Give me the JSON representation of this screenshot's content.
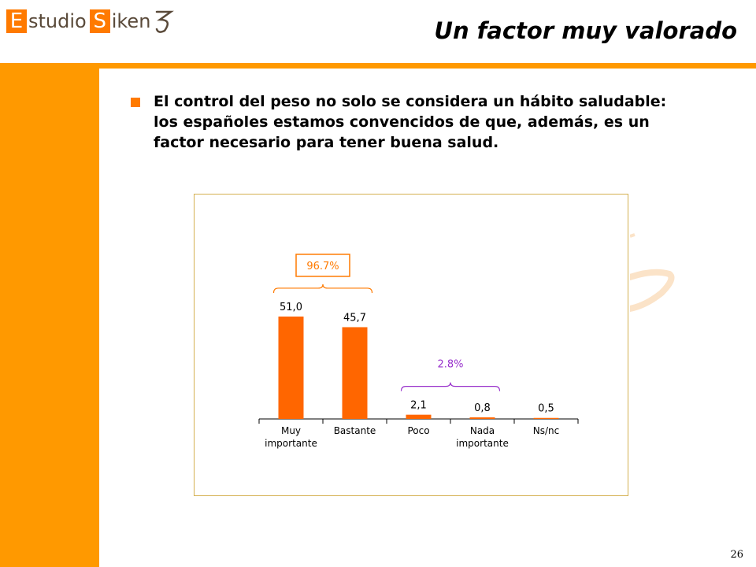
{
  "logo": {
    "e_letter": "E",
    "e_rest": "studio",
    "s_letter": "S",
    "s_rest": "iken"
  },
  "header": {
    "title": "Un factor muy valorado"
  },
  "content": {
    "paragraph": "El control del peso no solo se considera un hábito saludable: los españoles estamos convencidos de que, además, es un factor necesario para tener buena salud."
  },
  "colors": {
    "accent": "#ff9900",
    "bar": "#ff6600",
    "bracket_orange": "#ff7a00",
    "bracket_purple": "#9933cc"
  },
  "chart_data": {
    "type": "bar",
    "categories": [
      [
        "Muy",
        "importante"
      ],
      [
        "Bastante"
      ],
      [
        "Poco"
      ],
      [
        "Nada",
        "importante"
      ],
      [
        "Ns/nc"
      ]
    ],
    "values": [
      51.0,
      45.7,
      2.1,
      0.8,
      0.5
    ],
    "value_labels": [
      "51,0",
      "45,7",
      "2,1",
      "0,8",
      "0,5"
    ],
    "ylim": [
      0,
      60
    ],
    "annotations": [
      {
        "text": "96.7%",
        "from": 0,
        "to": 1,
        "color": "#ff7a00",
        "boxed": true
      },
      {
        "text": "2.8%",
        "from": 2,
        "to": 3,
        "color": "#9933cc",
        "boxed": false
      }
    ]
  },
  "footer": {
    "page_number": "26"
  }
}
